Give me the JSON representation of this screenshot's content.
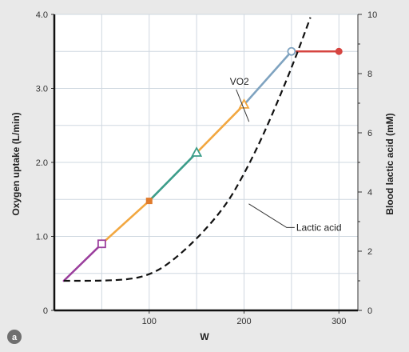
{
  "chart_data": {
    "type": "line",
    "panel_label": "a",
    "xlabel": "W",
    "ylabel": "Oxygen uptake (L/min)",
    "y2label": "Blood lactic acid (mM)",
    "xlim": [
      0,
      320
    ],
    "ylim": [
      0,
      4.0
    ],
    "y2lim": [
      0,
      10
    ],
    "x_ticks": [
      100,
      200,
      300
    ],
    "y_ticks": [
      "0",
      "1.0",
      "2.0",
      "3.0",
      "4.0"
    ],
    "y2_ticks": [
      "0",
      "2",
      "4",
      "6",
      "8",
      "10"
    ],
    "grid": true,
    "series": [
      {
        "name": "VO2",
        "axis": "left",
        "segments": [
          {
            "x": [
              10,
              50
            ],
            "y": [
              0.4,
              0.9
            ],
            "color": "#9b3f9d"
          },
          {
            "x": [
              50,
              100
            ],
            "y": [
              0.9,
              1.48
            ],
            "color": "#f2a740"
          },
          {
            "x": [
              100,
              150
            ],
            "y": [
              1.48,
              2.13
            ],
            "color": "#3c9d8a"
          },
          {
            "x": [
              150,
              200
            ],
            "y": [
              2.13,
              2.78
            ],
            "color": "#f2a740"
          },
          {
            "x": [
              200,
              250
            ],
            "y": [
              2.78,
              3.5
            ],
            "color": "#7fa3c0"
          },
          {
            "x": [
              250,
              300
            ],
            "y": [
              3.5,
              3.5
            ],
            "color": "#d64541"
          }
        ],
        "markers": [
          {
            "x": 50,
            "y": 0.9,
            "shape": "square-open",
            "color": "#9b3f9d"
          },
          {
            "x": 100,
            "y": 1.48,
            "shape": "square-filled",
            "color": "#e07b2c"
          },
          {
            "x": 150,
            "y": 2.13,
            "shape": "triangle-open",
            "color": "#3c9d8a"
          },
          {
            "x": 200,
            "y": 2.78,
            "shape": "triangle-open",
            "color": "#f2a740"
          },
          {
            "x": 250,
            "y": 3.5,
            "shape": "circle-open",
            "color": "#7fa3c0"
          },
          {
            "x": 300,
            "y": 3.5,
            "shape": "circle-filled",
            "color": "#d64541"
          }
        ]
      },
      {
        "name": "Lactic acid",
        "axis": "right",
        "style": "dashed",
        "color": "#111111",
        "x": [
          10,
          50,
          80,
          100,
          120,
          150,
          180,
          200,
          220,
          240,
          255,
          270
        ],
        "y": [
          1.0,
          1.0,
          1.05,
          1.2,
          1.55,
          2.4,
          3.5,
          4.6,
          5.9,
          7.4,
          8.6,
          9.9
        ]
      }
    ],
    "annotations": [
      {
        "text": "VO2",
        "x": 185,
        "y": 3.05,
        "axis": "left"
      },
      {
        "text": "Lactic acid",
        "x": 255,
        "y": 2.8,
        "axis": "right"
      }
    ]
  }
}
